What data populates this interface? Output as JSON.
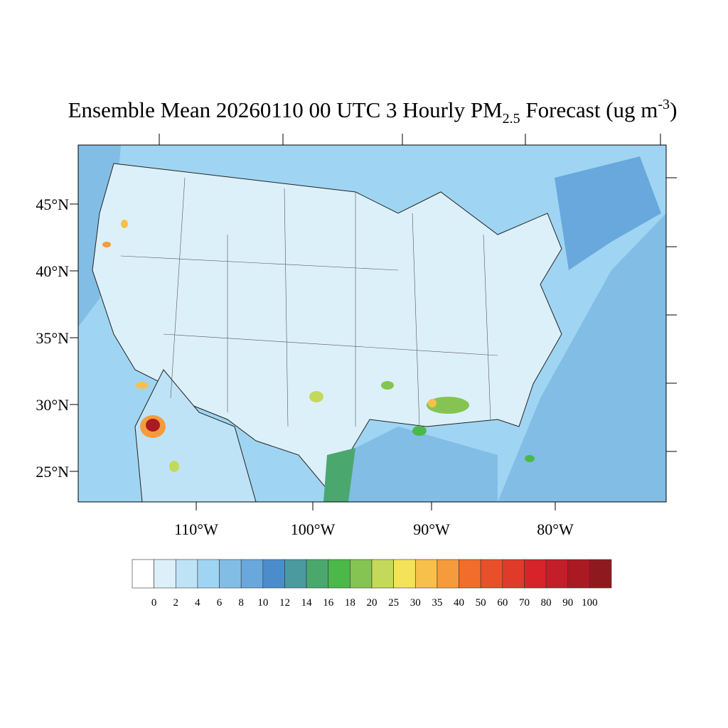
{
  "title": {
    "main": "Ensemble Mean 20260110 00 UTC 3 Hourly PM",
    "subscript": "2.5",
    "middle": " Forecast (ug m",
    "superscript": "-3",
    "end": ")"
  },
  "map": {
    "lat_labels": [
      "45°N",
      "40°N",
      "35°N",
      "30°N",
      "25°N"
    ],
    "lon_labels": [
      "110°W",
      "100°W",
      "90°W",
      "80°W"
    ]
  },
  "colorbar": {
    "levels": [
      0,
      2,
      4,
      6,
      8,
      10,
      12,
      14,
      16,
      18,
      20,
      25,
      30,
      35,
      40,
      50,
      60,
      70,
      80,
      90,
      100
    ],
    "colors": [
      "#ffffff",
      "#dcf0fa",
      "#bfe3f6",
      "#9fd5f2",
      "#82bde5",
      "#69a8dc",
      "#4b8dcb",
      "#4a9aa0",
      "#4aa86f",
      "#4bb84a",
      "#85c452",
      "#c4d95a",
      "#f4e35a",
      "#f7c04a",
      "#f59b3c",
      "#f26c2c",
      "#e8502c",
      "#e03a2a",
      "#d8232a",
      "#c41e2a",
      "#aa1a22",
      "#8f1a1e"
    ]
  }
}
